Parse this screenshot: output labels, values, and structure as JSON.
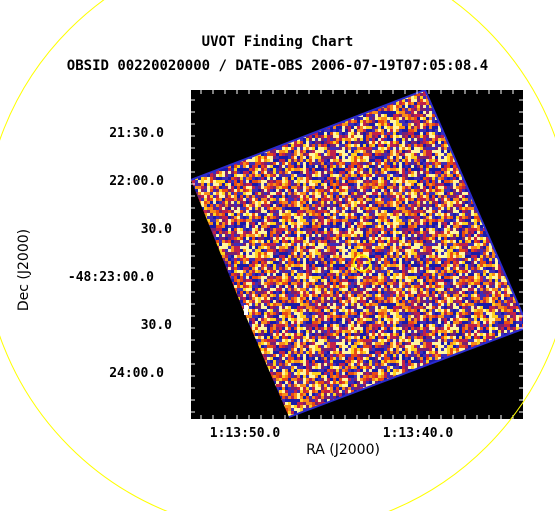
{
  "chart_data": {
    "type": "heatmap",
    "title": "UVOT Finding Chart",
    "subtitle": "OBSID 00220020000 / DATE-OBS 2006-07-19T07:05:08.4",
    "xlabel": "RA (J2000)",
    "ylabel": "Dec (J2000)",
    "x_ticks": [
      "1:13:50.0",
      "1:13:40.0"
    ],
    "y_ticks": [
      "21:30.0",
      "22:00.0",
      "30.0",
      "-48:23:00.0",
      "30.0",
      "24:00.0"
    ],
    "colormap": [
      "#1a1aa8",
      "#3f2db8",
      "#7a2070",
      "#c0204a",
      "#e84a14",
      "#f88a1a",
      "#ffd020",
      "#fff6a0"
    ],
    "background": "#000000",
    "overlays": [
      "source-circle",
      "field-circle"
    ],
    "overlay_color": "#ffff00",
    "grid": false
  }
}
